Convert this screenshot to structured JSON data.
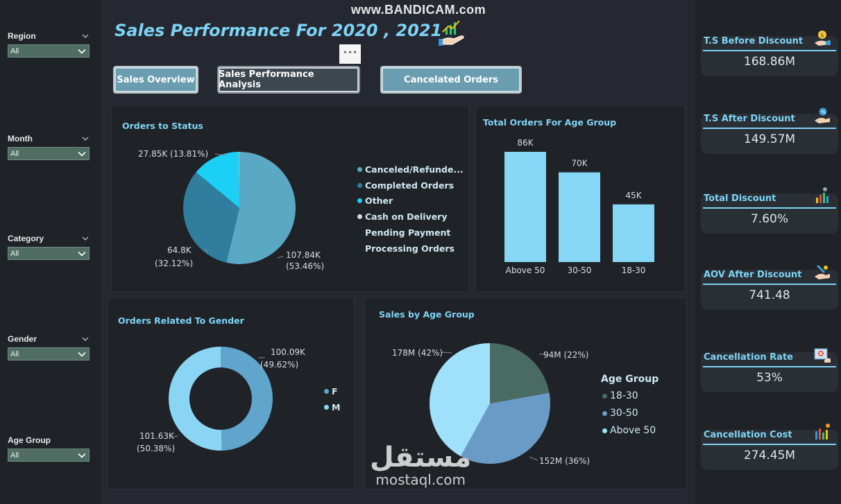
{
  "watermark": "www.BANDICAM.com",
  "brand_watermark": {
    "arabic": "مستقل",
    "latin": "mostaql.com"
  },
  "title": "Sales Performance For 2020 , 2021",
  "more_options": "•••",
  "nav": {
    "overview": "Sales Overview",
    "analysis": "Sales Performance Analysis",
    "canceled": "Cancelated Orders"
  },
  "filters": [
    {
      "title": "Region",
      "value": "All"
    },
    {
      "title": "Month",
      "value": "All"
    },
    {
      "title": "Category",
      "value": "All"
    },
    {
      "title": "Gender",
      "value": "All"
    },
    {
      "title": "Age Group",
      "value": "All"
    }
  ],
  "orders_status": {
    "title": "Orders to Status",
    "labels": {
      "canceled": "107.84K",
      "canceled_pct": "(53.46%)",
      "completed": "64.8K",
      "completed_pct": "(32.12%)",
      "other": "27.85K (13.81%)"
    },
    "legend": [
      "Canceled/Refunde...",
      "Completed Orders",
      "Other",
      "Cash on Delivery",
      "Pending Payment",
      "Processing Orders"
    ]
  },
  "age_orders": {
    "title": "Total Orders For Age Group",
    "labels": [
      "86K",
      "70K",
      "45K"
    ]
  },
  "gender": {
    "title": "Orders Related To Gender",
    "labels": {
      "f": "100.09K",
      "f_pct": "(49.62%)",
      "m": "101.63K",
      "m_pct": "(50.38%)"
    },
    "legend": [
      "F",
      "M"
    ]
  },
  "sales_age": {
    "title": "Sales by Age Group",
    "labels": {
      "s1830": "94M (22%)",
      "s3050": "152M (36%)",
      "s50": "178M (42%)"
    },
    "legend_title": "Age Group",
    "legend": [
      "18-30",
      "30-50",
      "Above 50"
    ]
  },
  "kpis": [
    {
      "label": "T.S Before Discount",
      "value": "168.86M"
    },
    {
      "label": "T.S After Discount",
      "value": "149.57M"
    },
    {
      "label": "Total Discount",
      "value": "7.60%"
    },
    {
      "label": "AOV After Discount",
      "value": "741.48"
    },
    {
      "label": "Cancellation Rate",
      "value": "53%"
    },
    {
      "label": "Cancellation Cost",
      "value": "274.45M"
    }
  ],
  "colors": {
    "canceled": "#5ba8c4",
    "completed": "#2f7e9e",
    "other": "#1ccff5",
    "cash": "#d9d9d9",
    "bar": "#86d6f5",
    "female": "#5fa5cc",
    "male": "#8bd5f4",
    "age_1830": "#4a6b62",
    "age_3050": "#6a9bc6",
    "age_50": "#9fe0fb"
  },
  "chart_data": [
    {
      "type": "pie",
      "title": "Orders to Status",
      "categories": [
        "Canceled/Refunded",
        "Completed Orders",
        "Other",
        "Cash on Delivery",
        "Pending Payment",
        "Processing Orders"
      ],
      "values": [
        107.84,
        64.8,
        27.85,
        0.3,
        0,
        0
      ],
      "unit": "K",
      "legend": "right"
    },
    {
      "type": "bar",
      "title": "Total Orders For Age Group",
      "categories": [
        "Above 50",
        "30-50",
        "18-30"
      ],
      "values": [
        86,
        70,
        45
      ],
      "unit": "K",
      "ylim": [
        0,
        86
      ]
    },
    {
      "type": "pie",
      "title": "Orders Related To Gender",
      "categories": [
        "F",
        "M"
      ],
      "values": [
        100.09,
        101.63
      ],
      "unit": "K",
      "legend": "right"
    },
    {
      "type": "pie",
      "title": "Sales by Age Group",
      "categories": [
        "18-30",
        "30-50",
        "Above 50"
      ],
      "values": [
        94,
        152,
        178
      ],
      "unit": "M",
      "legend": "right"
    }
  ]
}
